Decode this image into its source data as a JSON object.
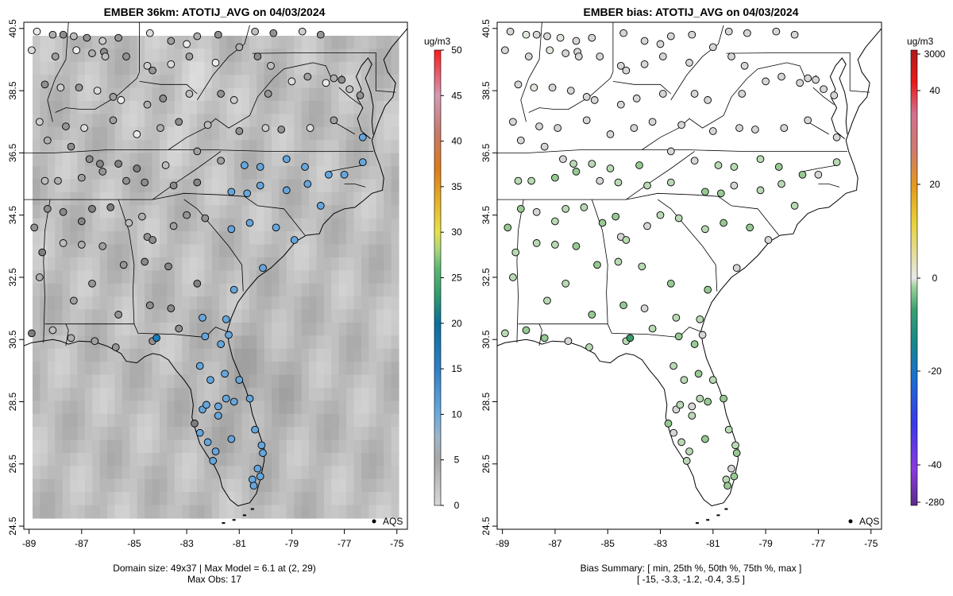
{
  "chart_data": [
    {
      "type": "map",
      "title": "EMBER 36km: ATOTIJ_AVG on 04/03/2024",
      "x_ticks": [
        "-89",
        "-87",
        "-85",
        "-83",
        "-81",
        "-79",
        "-77",
        "-75"
      ],
      "y_ticks": [
        "40.5",
        "38.5",
        "36.5",
        "34.5",
        "32.5",
        "30.5",
        "28.5",
        "26.5",
        "24.5"
      ],
      "xlim": [
        -89.2,
        -74.6
      ],
      "ylim": [
        24.4,
        40.7
      ],
      "colorbar_unit": "ug/m3",
      "colorbar_ticks": [
        "50",
        "45",
        "40",
        "35",
        "30",
        "25",
        "20",
        "15",
        "10",
        "5",
        "0"
      ],
      "legend": "AQS",
      "footer_lines": [
        "Domain size: 49x37 | Max Model = 6.1 at (2, 29)",
        "Max Obs: 17"
      ]
    },
    {
      "type": "map",
      "title": "EMBER bias: ATOTIJ_AVG on 04/03/2024",
      "x_ticks": [
        "-89",
        "-87",
        "-85",
        "-83",
        "-81",
        "-79",
        "-77",
        "-75"
      ],
      "y_ticks": [
        "40.5",
        "38.5",
        "36.5",
        "34.5",
        "32.5",
        "30.5",
        "28.5",
        "26.5",
        "24.5"
      ],
      "xlim": [
        -89.2,
        -74.6
      ],
      "ylim": [
        24.4,
        40.7
      ],
      "colorbar_unit": "ug/m3",
      "colorbar_ticks": [
        "3000",
        "40",
        "20",
        "0",
        "-20",
        "-40",
        "-280"
      ],
      "legend": "AQS",
      "footer_lines": [
        "Bias Summary: [ min, 25th %, 50th %, 75th %, max ]",
        "[ -15,   -3.3,   -1.2,   -0.4,   3.5 ]"
      ]
    }
  ]
}
